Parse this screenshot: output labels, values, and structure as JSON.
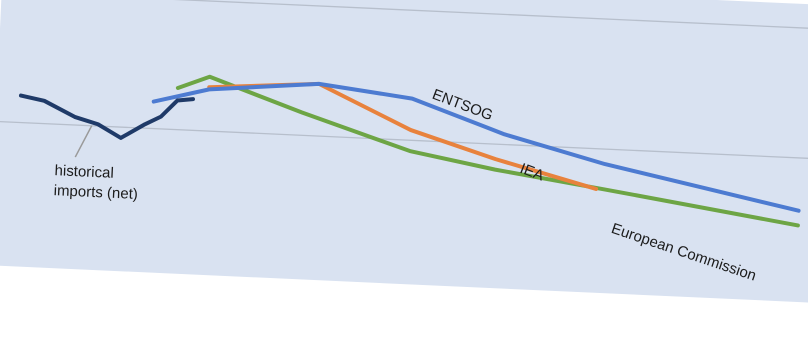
{
  "chart_data": {
    "type": "line",
    "title": "",
    "xlabel": "",
    "ylabel": "",
    "grid": "horizontal",
    "background_color": "#d9e2f1",
    "gridline_color": "#b7bfcc",
    "xlim": [
      0,
      100
    ],
    "ylim": [
      0,
      100
    ],
    "series": [
      {
        "name": "historical imports (net)",
        "color": "#1f3a68",
        "x": [
          0,
          3,
          7,
          10,
          13,
          16,
          18,
          20,
          22
        ],
        "y": [
          70,
          68,
          61,
          58,
          52,
          59,
          63,
          71,
          72
        ]
      },
      {
        "name": "ENTSOG",
        "color": "#4d7bd1",
        "x": [
          17,
          24,
          38,
          50,
          62,
          75,
          100
        ],
        "y": [
          70,
          77,
          82,
          77,
          62,
          50,
          32
        ]
      },
      {
        "name": "IEA",
        "color": "#e8823d",
        "x": [
          24,
          38,
          50,
          61,
          74
        ],
        "y": [
          78,
          82,
          62,
          50,
          38
        ]
      },
      {
        "name": "European Commission",
        "color": "#6da545",
        "x": [
          20,
          24,
          36,
          50,
          61,
          75,
          100
        ],
        "y": [
          77,
          83,
          68,
          52,
          45,
          38,
          25
        ]
      }
    ]
  },
  "labels": {
    "entsog": "ENTSOG",
    "iea": "IEA",
    "ec": "European Commission",
    "historical_line1": "historical",
    "historical_line2": "imports (net)"
  }
}
